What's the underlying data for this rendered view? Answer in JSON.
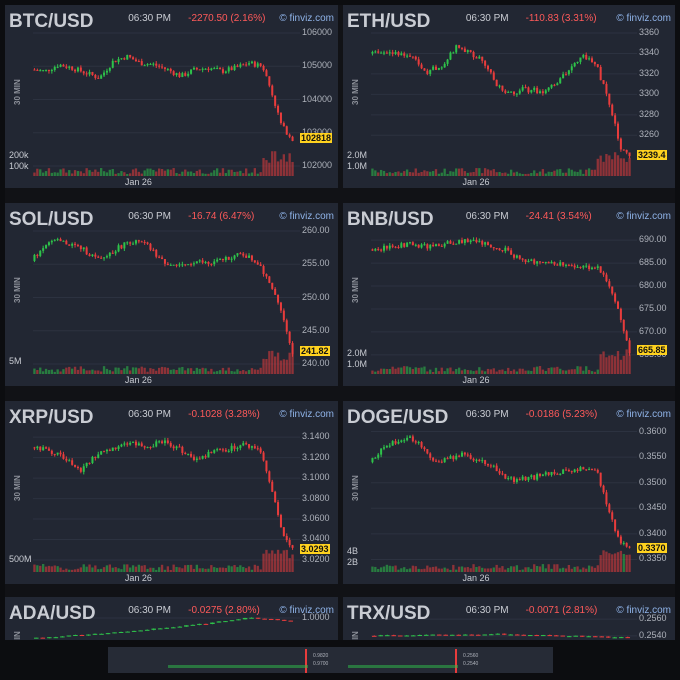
{
  "panels": [
    {
      "symbol": "BTC/USD",
      "time": "06:30 PM",
      "change": "-2270.50 (2.16%)",
      "source": "finviz.com",
      "interval": "30 MIN",
      "xlabel": "Jan 26",
      "last_price": "102818",
      "chart_data": {
        "type": "candlestick",
        "ylim": [
          102000,
          106000
        ],
        "yticks": [
          "106000",
          "105000",
          "104000",
          "103000",
          "102000"
        ],
        "ytick_values": [
          106000,
          105000,
          104000,
          103000,
          102000
        ],
        "volume_labels": [
          "200k",
          "100k"
        ],
        "path": [
          [
            0,
            104900
          ],
          [
            0.05,
            104850
          ],
          [
            0.1,
            105050
          ],
          [
            0.15,
            104950
          ],
          [
            0.2,
            104800
          ],
          [
            0.25,
            104650
          ],
          [
            0.3,
            105150
          ],
          [
            0.35,
            105300
          ],
          [
            0.4,
            105100
          ],
          [
            0.45,
            105050
          ],
          [
            0.5,
            104900
          ],
          [
            0.55,
            104700
          ],
          [
            0.6,
            104900
          ],
          [
            0.65,
            104950
          ],
          [
            0.7,
            104850
          ],
          [
            0.75,
            104950
          ],
          [
            0.8,
            105100
          ],
          [
            0.85,
            105000
          ],
          [
            0.88,
            104300
          ],
          [
            0.92,
            103200
          ],
          [
            0.96,
            102818
          ]
        ]
      }
    },
    {
      "symbol": "ETH/USD",
      "time": "06:30 PM",
      "change": "-110.83 (3.31%)",
      "source": "finviz.com",
      "interval": "30 MIN",
      "xlabel": "Jan 26",
      "last_price": "3239.4",
      "chart_data": {
        "type": "candlestick",
        "ylim": [
          3230,
          3360
        ],
        "yticks": [
          "3360",
          "3340",
          "3320",
          "3300",
          "3280",
          "3260"
        ],
        "ytick_values": [
          3360,
          3340,
          3320,
          3300,
          3280,
          3260
        ],
        "volume_labels": [
          "2.0M",
          "1.0M"
        ],
        "path": [
          [
            0,
            3340
          ],
          [
            0.08,
            3342
          ],
          [
            0.15,
            3338
          ],
          [
            0.22,
            3322
          ],
          [
            0.28,
            3330
          ],
          [
            0.33,
            3348
          ],
          [
            0.38,
            3340
          ],
          [
            0.43,
            3332
          ],
          [
            0.48,
            3310
          ],
          [
            0.52,
            3300
          ],
          [
            0.58,
            3305
          ],
          [
            0.65,
            3303
          ],
          [
            0.7,
            3310
          ],
          [
            0.75,
            3322
          ],
          [
            0.8,
            3338
          ],
          [
            0.85,
            3332
          ],
          [
            0.9,
            3295
          ],
          [
            0.95,
            3245
          ],
          [
            0.98,
            3239.4
          ]
        ]
      }
    },
    {
      "symbol": "SOL/USD",
      "time": "06:30 PM",
      "change": "-16.74 (6.47%)",
      "source": "finviz.com",
      "interval": "30 MIN",
      "xlabel": "Jan 26",
      "last_price": "241.82",
      "chart_data": {
        "type": "candlestick",
        "ylim": [
          240,
          260
        ],
        "yticks": [
          "260.00",
          "255.00",
          "250.00",
          "245.00",
          "240.00"
        ],
        "ytick_values": [
          260,
          255,
          250,
          245,
          240
        ],
        "volume_labels": [
          "5M"
        ],
        "path": [
          [
            0,
            255.5
          ],
          [
            0.06,
            258.5
          ],
          [
            0.12,
            258.3
          ],
          [
            0.18,
            257.5
          ],
          [
            0.25,
            255.5
          ],
          [
            0.3,
            257
          ],
          [
            0.36,
            258.5
          ],
          [
            0.42,
            258
          ],
          [
            0.48,
            255.5
          ],
          [
            0.55,
            254.5
          ],
          [
            0.6,
            255.5
          ],
          [
            0.66,
            255
          ],
          [
            0.72,
            256
          ],
          [
            0.78,
            256.5
          ],
          [
            0.84,
            255
          ],
          [
            0.9,
            250
          ],
          [
            0.96,
            241.82
          ]
        ]
      }
    },
    {
      "symbol": "BNB/USD",
      "time": "06:30 PM",
      "change": "-24.41 (3.54%)",
      "source": "finviz.com",
      "interval": "30 MIN",
      "xlabel": "Jan 26",
      "last_price": "665.85",
      "chart_data": {
        "type": "candlestick",
        "ylim": [
          663,
          692
        ],
        "yticks": [
          "690.00",
          "685.00",
          "680.00",
          "675.00",
          "670.00",
          "665.00"
        ],
        "ytick_values": [
          690,
          685,
          680,
          675,
          670,
          665
        ],
        "volume_labels": [
          "2.0M",
          "1.0M"
        ],
        "path": [
          [
            0,
            688
          ],
          [
            0.08,
            688.5
          ],
          [
            0.15,
            689
          ],
          [
            0.22,
            688.5
          ],
          [
            0.3,
            689.5
          ],
          [
            0.38,
            690
          ],
          [
            0.45,
            689
          ],
          [
            0.5,
            688
          ],
          [
            0.55,
            686
          ],
          [
            0.6,
            685.5
          ],
          [
            0.66,
            685
          ],
          [
            0.72,
            684.5
          ],
          [
            0.78,
            684.5
          ],
          [
            0.84,
            684
          ],
          [
            0.88,
            681
          ],
          [
            0.92,
            675
          ],
          [
            0.96,
            665.85
          ]
        ]
      }
    },
    {
      "symbol": "XRP/USD",
      "time": "06:30 PM",
      "change": "-0.1028 (3.28%)",
      "source": "finviz.com",
      "interval": "30 MIN",
      "xlabel": "Jan 26",
      "last_price": "3.0293",
      "chart_data": {
        "type": "candlestick",
        "ylim": [
          3.018,
          3.148
        ],
        "yticks": [
          "3.1400",
          "3.1200",
          "3.1000",
          "3.0800",
          "3.0600",
          "3.0400",
          "3.0200"
        ],
        "ytick_values": [
          3.14,
          3.12,
          3.1,
          3.08,
          3.06,
          3.04,
          3.02
        ],
        "volume_labels": [
          "500M"
        ],
        "path": [
          [
            0,
            3.13
          ],
          [
            0.06,
            3.128
          ],
          [
            0.12,
            3.12
          ],
          [
            0.18,
            3.108
          ],
          [
            0.24,
            3.122
          ],
          [
            0.3,
            3.13
          ],
          [
            0.36,
            3.135
          ],
          [
            0.42,
            3.13
          ],
          [
            0.48,
            3.136
          ],
          [
            0.54,
            3.13
          ],
          [
            0.6,
            3.118
          ],
          [
            0.66,
            3.125
          ],
          [
            0.72,
            3.128
          ],
          [
            0.78,
            3.132
          ],
          [
            0.84,
            3.128
          ],
          [
            0.88,
            3.09
          ],
          [
            0.92,
            3.05
          ],
          [
            0.96,
            3.0293
          ]
        ]
      }
    },
    {
      "symbol": "DOGE/USD",
      "time": "06:30 PM",
      "change": "-0.0186 (5.23%)",
      "source": "finviz.com",
      "interval": "30 MIN",
      "xlabel": "Jan 26",
      "last_price": "0.3370",
      "chart_data": {
        "type": "candlestick",
        "ylim": [
          0.3345,
          0.3605
        ],
        "yticks": [
          "0.3600",
          "0.3550",
          "0.3500",
          "0.3450",
          "0.3400",
          "0.3350"
        ],
        "ytick_values": [
          0.36,
          0.355,
          0.35,
          0.345,
          0.34,
          0.335
        ],
        "volume_labels": [
          "4B",
          "2B"
        ],
        "path": [
          [
            0,
            0.354
          ],
          [
            0.05,
            0.357
          ],
          [
            0.1,
            0.358
          ],
          [
            0.15,
            0.359
          ],
          [
            0.2,
            0.3565
          ],
          [
            0.25,
            0.354
          ],
          [
            0.3,
            0.355
          ],
          [
            0.35,
            0.3555
          ],
          [
            0.4,
            0.3545
          ],
          [
            0.45,
            0.3535
          ],
          [
            0.5,
            0.351
          ],
          [
            0.55,
            0.3505
          ],
          [
            0.6,
            0.351
          ],
          [
            0.65,
            0.3515
          ],
          [
            0.7,
            0.352
          ],
          [
            0.75,
            0.3525
          ],
          [
            0.8,
            0.353
          ],
          [
            0.84,
            0.352
          ],
          [
            0.88,
            0.345
          ],
          [
            0.92,
            0.339
          ],
          [
            0.96,
            0.337
          ]
        ]
      }
    },
    {
      "symbol": "ADA/USD",
      "time": "06:30 PM",
      "change": "-0.0275 (2.80%)",
      "source": "finviz.com",
      "interval": "30 MIN",
      "xlabel": "",
      "last_price": "",
      "chart_data": {
        "type": "candlestick",
        "ylim": [
          0.985,
          1.002
        ],
        "yticks": [
          "1.0000"
        ],
        "ytick_values": [
          1.0
        ],
        "volume_labels": [],
        "path": [
          [
            0.5,
            0.986
          ],
          [
            0.6,
            0.99
          ],
          [
            0.7,
            0.996
          ],
          [
            0.75,
            1.0
          ],
          [
            0.8,
            0.998
          ]
        ]
      }
    },
    {
      "symbol": "TRX/USD",
      "time": "06:30 PM",
      "change": "-0.0071 (2.81%)",
      "source": "finviz.com",
      "interval": "30 MIN",
      "xlabel": "",
      "last_price": "",
      "chart_data": {
        "type": "candlestick",
        "ylim": [
          0.2535,
          0.2565
        ],
        "yticks": [
          "0.2560",
          "0.2540"
        ],
        "ytick_values": [
          0.256,
          0.254
        ],
        "volume_labels": [],
        "path": [
          [
            0,
            0.254
          ],
          [
            0.05,
            0.2542
          ],
          [
            0.1,
            0.2538
          ]
        ]
      }
    }
  ],
  "colors": {
    "up": "#2ec24a",
    "down": "#e83c3c",
    "panel_bg": "#222733",
    "grid": "#2c3240",
    "last_price_bg": "#ffd21f",
    "change": "#ff5a5a"
  },
  "bottom_strip": {
    "labels": [
      "0.9820",
      "0.9700",
      "0.2560",
      "0.2540"
    ]
  }
}
